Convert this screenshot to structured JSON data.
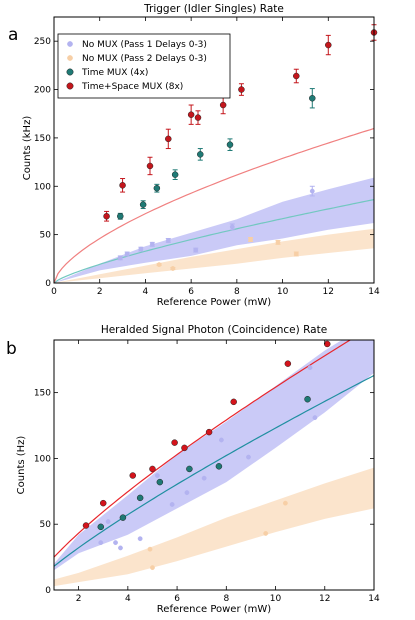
{
  "panels": [
    {
      "letter": "a",
      "chart_index": 0
    },
    {
      "letter": "b",
      "chart_index": 1
    }
  ],
  "chart_data": [
    {
      "type": "scatter",
      "title": "Trigger (Idler Singles) Rate",
      "xlabel": "Reference Power (mW)",
      "ylabel": "Counts (kHz)",
      "xlim": [
        0,
        14
      ],
      "ylim": [
        0,
        275
      ],
      "xticks": [
        0,
        2,
        4,
        6,
        8,
        10,
        12,
        14
      ],
      "yticks": [
        0,
        50,
        100,
        150,
        200,
        250
      ],
      "grid": false,
      "legend": {
        "placement": "top-left",
        "entries": [
          {
            "label": "No MUX (Pass 1 Delays 0-3)",
            "series": 0
          },
          {
            "label": "No MUX (Pass 2 Delays 0-3)",
            "series": 1
          },
          {
            "label": "Time MUX (4x)",
            "series": 2
          },
          {
            "label": "Time+Space MUX (8x)",
            "series": 3
          }
        ]
      },
      "series": [
        {
          "name": "No MUX (Pass 1 Delays 0-3)",
          "color": "#b3b3f0",
          "x": [
            2.9,
            3.2,
            3.8,
            4.3,
            5.0,
            6.2,
            7.8,
            11.3
          ],
          "y": [
            26,
            30,
            35,
            40,
            44,
            34,
            58,
            95
          ],
          "err": [
            2,
            2,
            2,
            2,
            2,
            2,
            3,
            5
          ]
        },
        {
          "name": "No MUX (Pass 2 Delays 0-3)",
          "color": "#f7cfa6",
          "x": [
            4.6,
            5.2,
            8.6,
            9.8,
            10.6
          ],
          "y": [
            19,
            15,
            45,
            42,
            30
          ],
          "err": [
            1,
            1,
            2,
            2,
            2
          ]
        },
        {
          "name": "Time MUX (4x)",
          "color": "#1f7a75",
          "x": [
            2.9,
            3.9,
            4.5,
            5.3,
            6.4,
            7.7,
            11.3
          ],
          "y": [
            69,
            81,
            98,
            112,
            133,
            143,
            191
          ],
          "err": [
            3,
            4,
            4,
            5,
            6,
            6,
            10
          ],
          "fit": {
            "color": "#72c8c0",
            "a": 11.3,
            "p": 0.77
          }
        },
        {
          "name": "Time+Space MUX (8x)",
          "color": "#c4161c",
          "x": [
            2.3,
            3.0,
            4.2,
            5.0,
            6.0,
            6.3,
            7.4,
            8.2,
            10.6,
            12.0,
            14.0
          ],
          "y": [
            69,
            101,
            121,
            149,
            174,
            171,
            184,
            200,
            214,
            246,
            259
          ],
          "err": [
            5,
            7,
            9,
            10,
            10,
            7,
            9,
            6,
            7,
            10,
            8
          ],
          "fit": {
            "color": "#f08080",
            "a": 29.5,
            "p": 0.64
          }
        }
      ],
      "bands": [
        {
          "name": "No MUX (Pass 1 Delays 0-3)",
          "color": "#8a8aee",
          "x": [
            0,
            2.0,
            4.0,
            6.0,
            8.0,
            10.0,
            12.0,
            14.0
          ],
          "lower": [
            0,
            13,
            21,
            28,
            39,
            46,
            55,
            62
          ],
          "upper": [
            0,
            20,
            38,
            52,
            66,
            84,
            97,
            109
          ]
        },
        {
          "name": "No MUX (Pass 2 Delays 0-3)",
          "color": "#f6c48f",
          "x": [
            0,
            2.0,
            4.0,
            6.0,
            8.0,
            10.0,
            12.0,
            14.0
          ],
          "lower": [
            0,
            5,
            10,
            15,
            20,
            26,
            31,
            36
          ],
          "upper": [
            0,
            9,
            18,
            27,
            35,
            43,
            50,
            56
          ]
        }
      ]
    },
    {
      "type": "scatter",
      "title": "Heralded Signal Photon (Coincidence) Rate",
      "xlabel": "Reference Power (mW)",
      "ylabel": "Counts (Hz)",
      "xlim": [
        1,
        14
      ],
      "ylim": [
        0,
        190
      ],
      "xticks": [
        2,
        4,
        6,
        8,
        10,
        12,
        14
      ],
      "yticks": [
        0,
        50,
        100,
        150
      ],
      "grid": false,
      "series": [
        {
          "name": "No MUX (Pass 1 Delays 0-3)",
          "color": "#b3b3f0",
          "x": [
            2.9,
            3.2,
            3.5,
            3.7,
            4.5,
            5.2,
            5.8,
            6.4,
            7.1,
            7.8,
            8.9,
            11.4,
            11.6
          ],
          "y": [
            36,
            52,
            36,
            32,
            39,
            87,
            65,
            74,
            85,
            114,
            101,
            169,
            131
          ]
        },
        {
          "name": "No MUX (Pass 2 Delays 0-3)",
          "color": "#f7cfa6",
          "x": [
            4.9,
            5.0,
            9.6,
            10.4
          ],
          "y": [
            31,
            17,
            43,
            66
          ]
        },
        {
          "name": "Time MUX (4x)",
          "color": "#1f7a75",
          "x": [
            2.9,
            3.8,
            4.5,
            5.3,
            6.5,
            7.7,
            11.3
          ],
          "y": [
            48,
            55,
            70,
            82,
            92,
            94,
            145
          ],
          "fit": {
            "color": "#1f8fa0",
            "a": 18.0,
            "p": 0.835
          }
        },
        {
          "name": "Time+Space MUX (8x)",
          "color": "#d4141c",
          "x": [
            2.3,
            3.0,
            4.2,
            5.0,
            5.9,
            6.3,
            7.3,
            8.3,
            10.5,
            12.1
          ],
          "y": [
            49,
            66,
            87,
            92,
            112,
            108,
            120,
            143,
            172,
            187
          ],
          "fit": {
            "color": "#e8262c",
            "a": 25.0,
            "p": 0.79
          }
        }
      ],
      "bands": [
        {
          "name": "No MUX (Pass 1 Delays 0-3)",
          "color": "#8a8aee",
          "x": [
            1,
            2.0,
            4.0,
            6.0,
            8.0,
            10.0,
            12.0,
            14.0
          ],
          "lower": [
            15,
            28,
            42,
            62,
            82,
            108,
            135,
            165
          ],
          "upper": [
            20,
            42,
            72,
            103,
            128,
            155,
            182,
            205
          ]
        },
        {
          "name": "No MUX (Pass 2 Delays 0-3)",
          "color": "#f6c48f",
          "x": [
            1,
            2.0,
            4.0,
            6.0,
            8.0,
            10.0,
            12.0,
            14.0
          ],
          "lower": [
            3,
            6,
            12,
            22,
            33,
            44,
            54,
            62
          ],
          "upper": [
            8,
            13,
            26,
            40,
            55,
            68,
            81,
            93
          ]
        }
      ]
    }
  ]
}
